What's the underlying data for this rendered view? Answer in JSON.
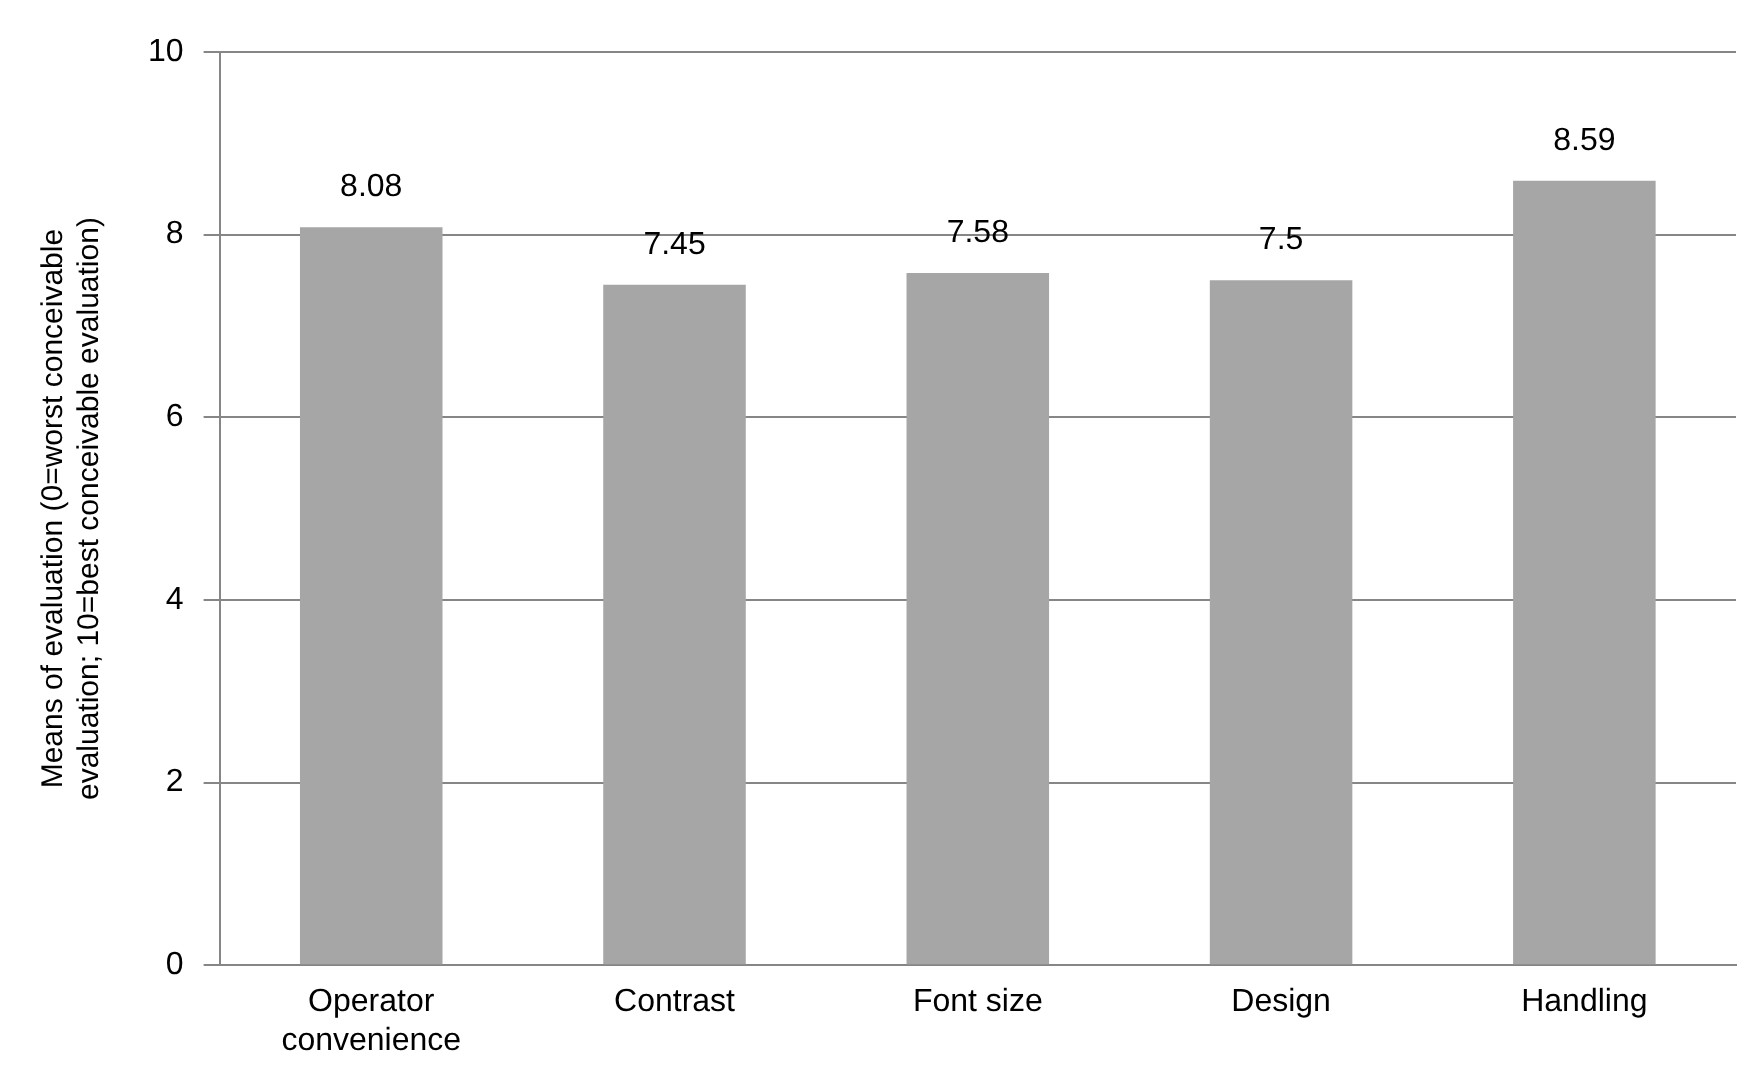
{
  "chart_data": {
    "type": "bar",
    "ylabel": "Means of evaluation (0=worst conceivable evaluation; 10=best conceivable evaluation)",
    "categories": [
      "Operator convenience",
      "Contrast",
      "Font size",
      "Design",
      "Handling"
    ],
    "values": [
      8.08,
      7.45,
      7.58,
      7.5,
      8.59
    ],
    "color": "#a6a6a6",
    "ylim": [
      0,
      10
    ],
    "yticks": [
      0,
      2,
      4,
      6,
      8,
      10
    ],
    "grid": "y",
    "data_labels": true,
    "legend": false
  }
}
